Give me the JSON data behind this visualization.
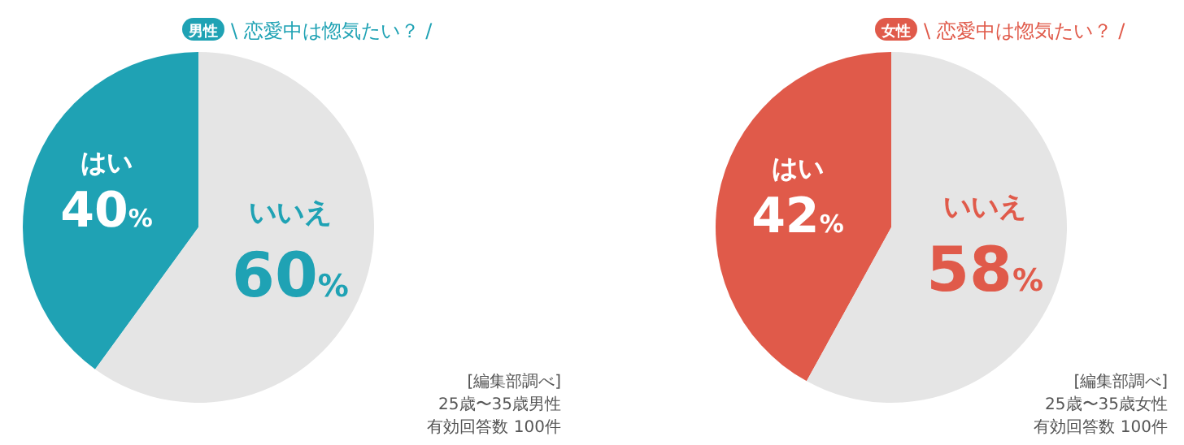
{
  "chart_data": [
    {
      "type": "pie",
      "subtitle": "男性",
      "title": "\\ 恋愛中は惚気たい？ /",
      "categories": [
        "はい",
        "いいえ"
      ],
      "values": [
        40,
        60
      ],
      "colors": [
        "#1fa2b4",
        "#e5e5e5"
      ],
      "value_labels": [
        "40%",
        "60%"
      ],
      "annotations": [
        "[編集部調べ]",
        "25歳〜35歳男性",
        "有効回答数 100件"
      ]
    },
    {
      "type": "pie",
      "subtitle": "女性",
      "title": "\\ 恋愛中は惚気たい？ /",
      "categories": [
        "はい",
        "いいえ"
      ],
      "values": [
        42,
        58
      ],
      "colors": [
        "#e05a4a",
        "#e5e5e5"
      ],
      "value_labels": [
        "42%",
        "58%"
      ],
      "annotations": [
        "[編集部調べ]",
        "25歳〜35歳女性",
        "有効回答数 100件"
      ]
    }
  ]
}
